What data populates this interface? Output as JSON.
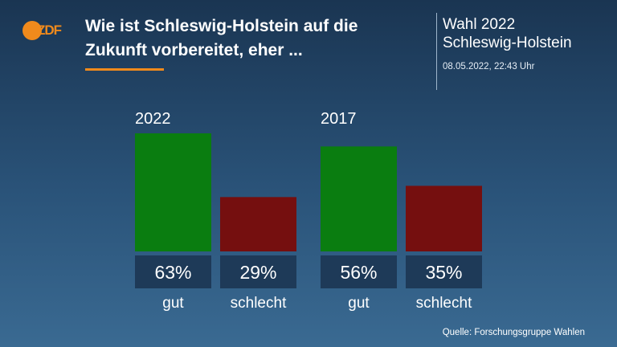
{
  "header": {
    "logo_text": "ZDF",
    "title": "Wie ist Schleswig-Holstein auf die Zukunft vorbereitet, eher ...",
    "election": "Wahl 2022",
    "region": "Schleswig-Holstein",
    "timestamp": "08.05.2022, 22:43 Uhr"
  },
  "footer": {
    "source": "Quelle: Forschungsgruppe Wahlen"
  },
  "colors": {
    "gut": "#0a7d10",
    "schlecht": "#750f0f",
    "label_box": "#1e3a58",
    "accent": "#f08a1c"
  },
  "chart_data": {
    "type": "bar",
    "title": "Wie ist Schleswig-Holstein auf die Zukunft vorbereitet, eher ...",
    "categories": [
      "gut",
      "schlecht"
    ],
    "unit": "%",
    "groups": [
      {
        "name": "2022",
        "values": [
          63,
          29
        ]
      },
      {
        "name": "2017",
        "values": [
          56,
          35
        ]
      }
    ],
    "ylim": [
      0,
      63
    ],
    "grid": false
  }
}
